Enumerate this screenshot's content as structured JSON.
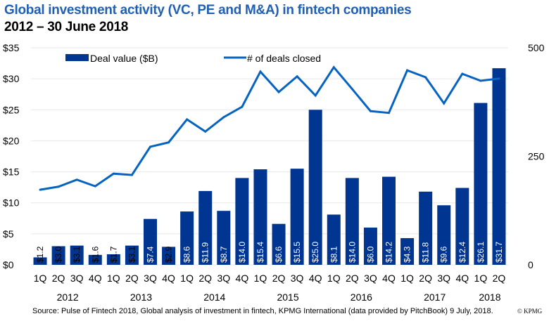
{
  "header": {
    "title": "Global investment activity (VC, PE and M&A) in fintech companies",
    "subtitle": "2012 – 30 June 2018"
  },
  "footer": {
    "source": "Source: Pulse of Fintech 2018, Global analysis of investment in fintech, KPMG International (data provided by PitchBook) 9 July, 2018.",
    "copyright": "© KPMG"
  },
  "colors": {
    "bar": "#003591",
    "line": "#0563c1",
    "title": "#1f5fb4",
    "grid": "#e8e8e8"
  },
  "chart_data": {
    "type": "bar+line",
    "title": "Global investment activity (VC, PE and M&A) in fintech companies",
    "subtitle": "2012 – 30 June 2018",
    "categories": [
      "1Q",
      "2Q",
      "3Q",
      "4Q",
      "1Q",
      "2Q",
      "3Q",
      "4Q",
      "1Q",
      "2Q",
      "3Q",
      "4Q",
      "1Q",
      "2Q",
      "3Q",
      "4Q",
      "1Q",
      "2Q",
      "3Q",
      "4Q",
      "1Q",
      "2Q",
      "3Q",
      "4Q",
      "1Q",
      "2Q"
    ],
    "years": [
      {
        "label": "2012",
        "start": 0,
        "end": 3
      },
      {
        "label": "2013",
        "start": 4,
        "end": 7
      },
      {
        "label": "2014",
        "start": 8,
        "end": 11
      },
      {
        "label": "2015",
        "start": 12,
        "end": 15
      },
      {
        "label": "2016",
        "start": 16,
        "end": 19
      },
      {
        "label": "2017",
        "start": 20,
        "end": 23
      },
      {
        "label": "2018",
        "start": 24,
        "end": 25
      }
    ],
    "series": [
      {
        "name": "Deal value ($B)",
        "type": "bar",
        "axis": "left",
        "values": [
          1.2,
          3.0,
          3.1,
          1.6,
          1.7,
          3.1,
          7.4,
          2.9,
          8.6,
          11.9,
          8.7,
          14.0,
          15.4,
          6.6,
          15.5,
          25.0,
          8.1,
          14.0,
          6.0,
          14.2,
          4.3,
          11.8,
          9.6,
          12.4,
          26.1,
          31.7
        ],
        "labels": [
          "$1.2",
          "$3.0",
          "$3.1",
          "$1.6",
          "$1.7",
          "$3.1",
          "$7.4",
          "$2.9",
          "$8.6",
          "$11.9",
          "$8.7",
          "$14.0",
          "$15.4",
          "$6.6",
          "$15.5",
          "$25.0",
          "$8.1",
          "$14.0",
          "$6.0",
          "$14.2",
          "$4.3",
          "$11.8",
          "$9.6",
          "$12.4",
          "$26.1",
          "$31.7"
        ]
      },
      {
        "name": "# of deals closed",
        "type": "line",
        "axis": "right",
        "values": [
          173,
          180,
          196,
          181,
          210,
          207,
          272,
          282,
          335,
          307,
          340,
          364,
          445,
          398,
          434,
          390,
          455,
          405,
          354,
          350,
          448,
          432,
          372,
          440,
          424,
          429
        ]
      }
    ],
    "left_axis": {
      "ylim": [
        0,
        35
      ],
      "ticks": [
        0,
        5,
        10,
        15,
        20,
        25,
        30,
        35
      ],
      "tick_labels": [
        "$0",
        "$5",
        "$10",
        "$15",
        "$20",
        "$25",
        "$30",
        "$35"
      ]
    },
    "right_axis": {
      "ylim": [
        0,
        500
      ],
      "ticks": [
        0,
        250,
        500
      ],
      "tick_labels": [
        "0",
        "250",
        "500"
      ]
    },
    "grid": true,
    "legend": {
      "placement": "top",
      "entries": [
        "Deal value ($B)",
        "# of deals closed"
      ]
    }
  }
}
